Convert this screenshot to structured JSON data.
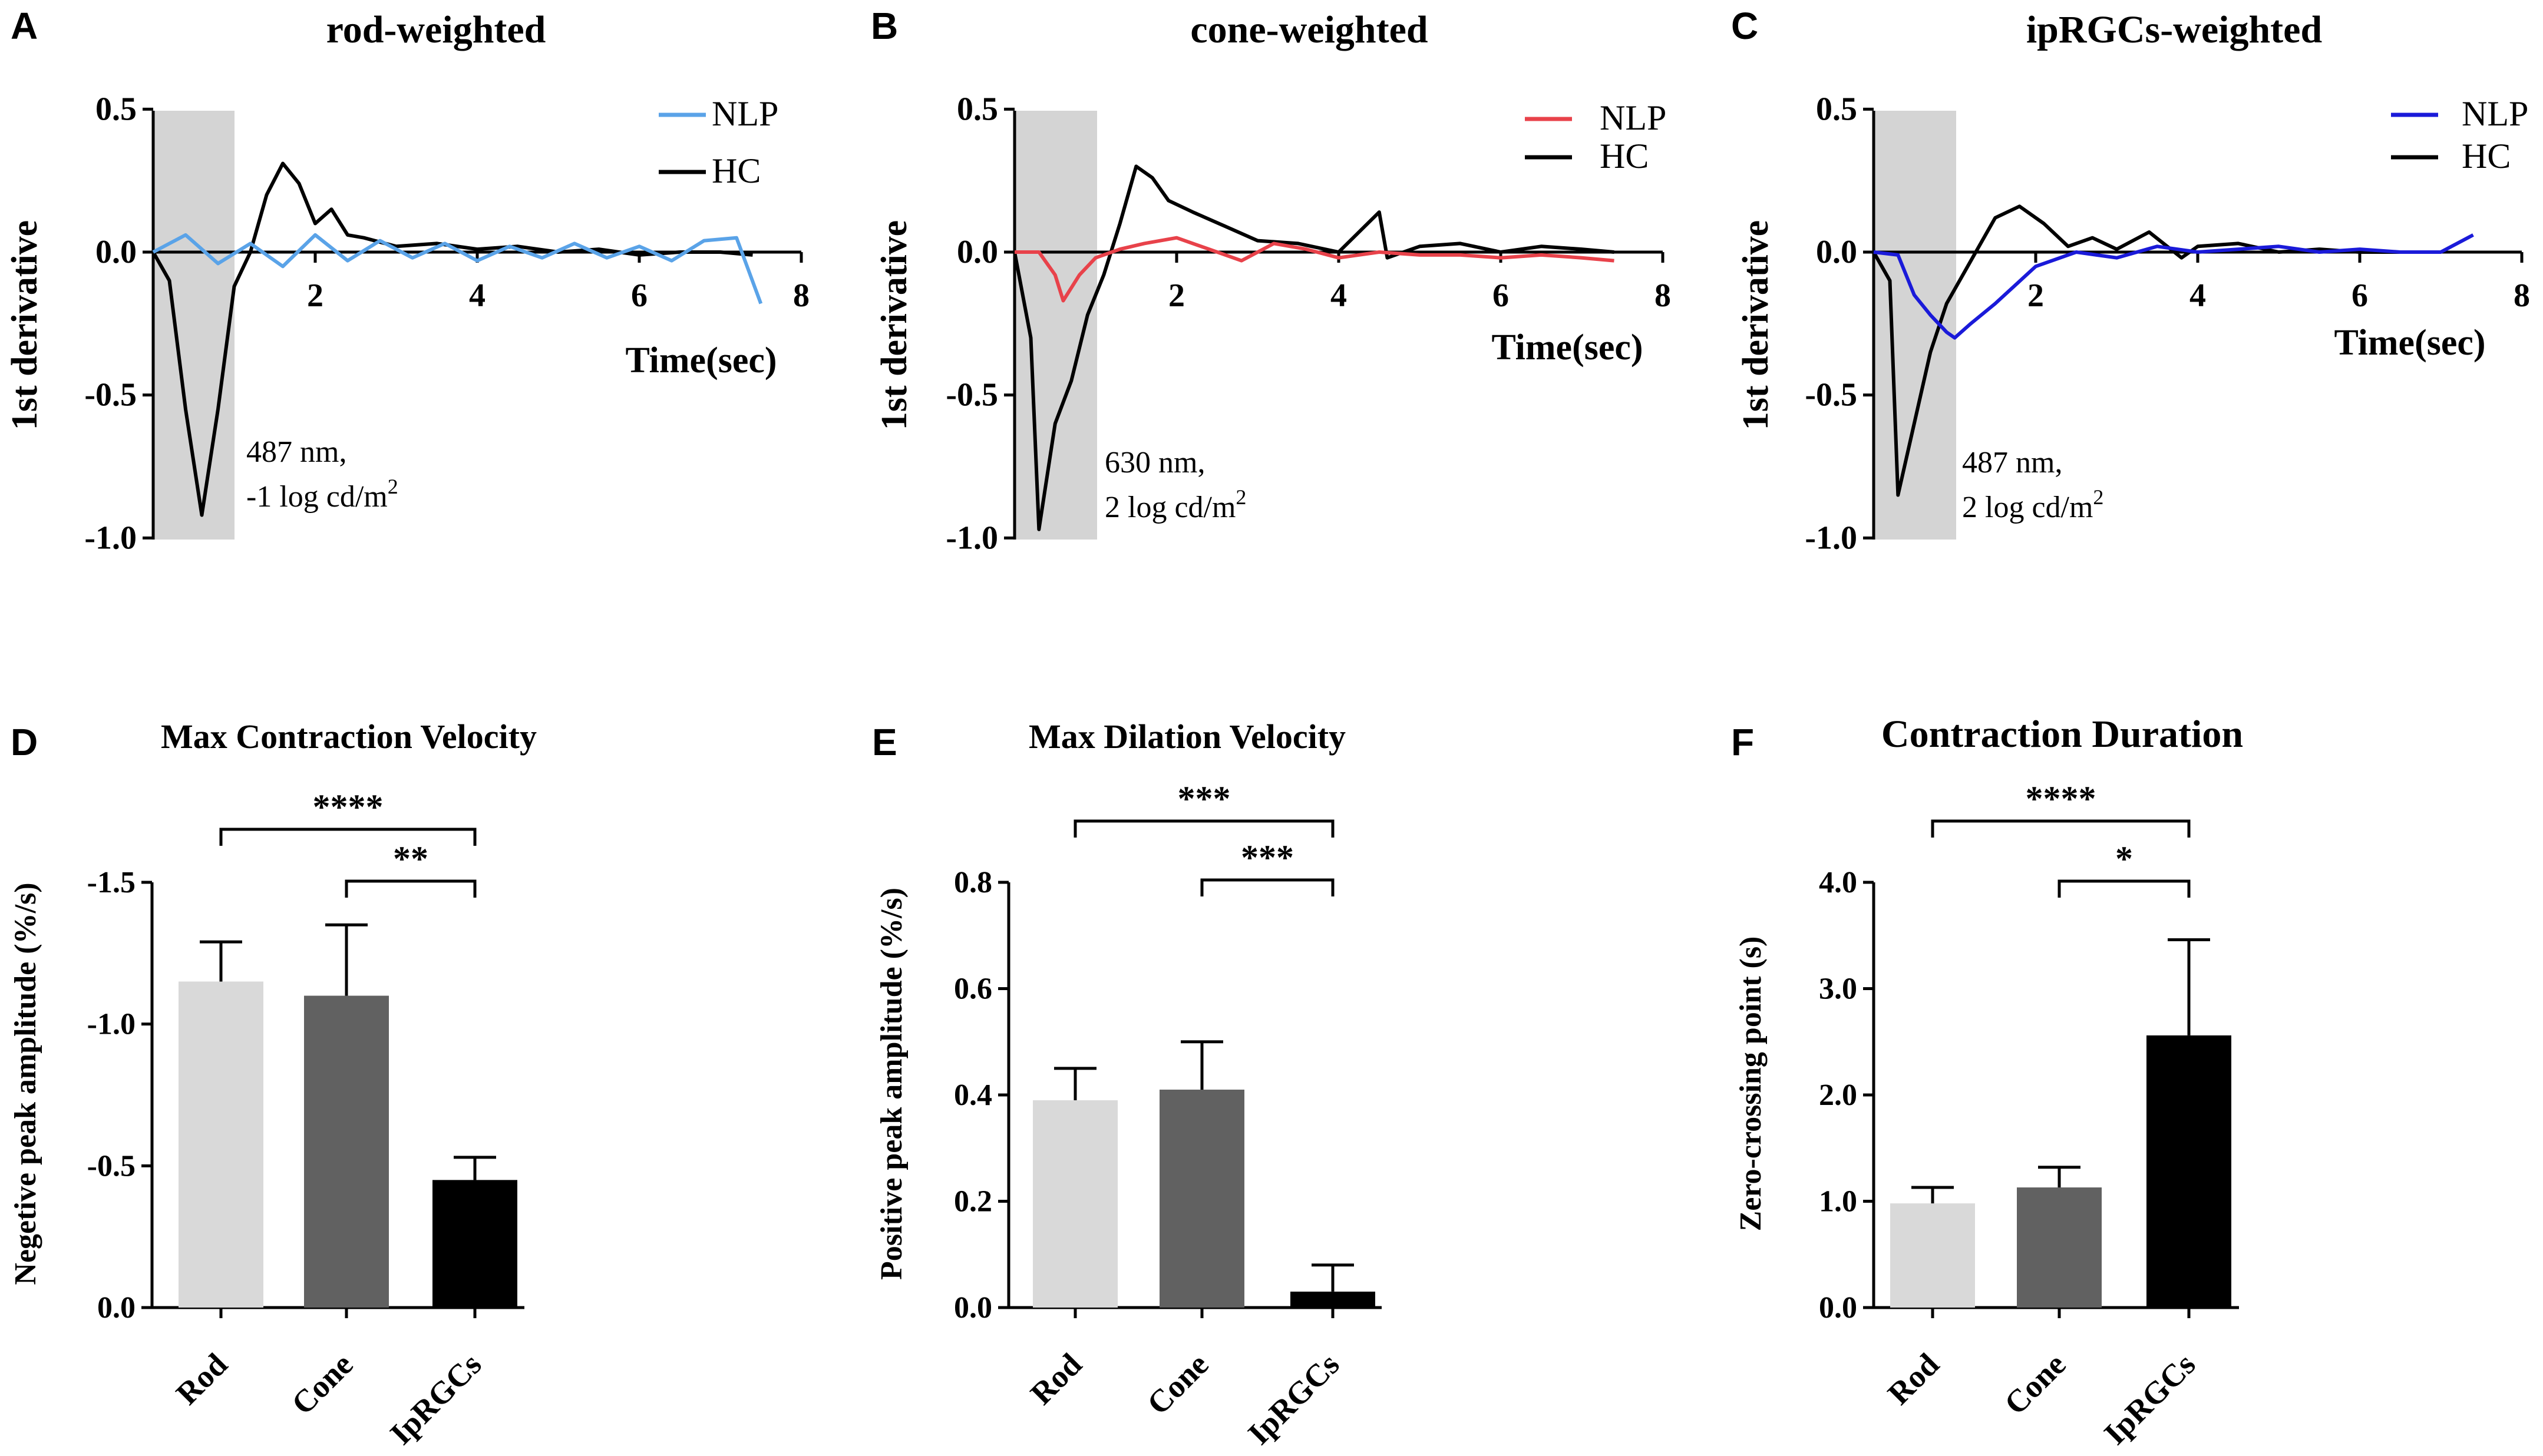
{
  "chart_data": [
    {
      "panel": "A",
      "type": "line",
      "title": "rod-weighted",
      "xlabel": "Time(sec)",
      "ylabel": "1st derivative",
      "xlim": [
        0,
        8
      ],
      "ylim": [
        -1.0,
        0.5
      ],
      "xticks": [
        "2",
        "4",
        "6",
        "8"
      ],
      "yticks": [
        "0.5",
        "0.0",
        "-0.5",
        "-1.0"
      ],
      "stimulus_window": [
        0,
        1
      ],
      "annotation": [
        "487 nm,",
        "-1 log cd/m",
        "2"
      ],
      "series": [
        {
          "name": "NLP",
          "color": "#5aa3e8",
          "x": [
            0,
            0.4,
            0.8,
            1.2,
            1.6,
            2.0,
            2.4,
            2.8,
            3.2,
            3.6,
            4.0,
            4.4,
            4.8,
            5.2,
            5.6,
            6.0,
            6.4,
            6.8,
            7.2,
            7.5
          ],
          "y": [
            0.0,
            0.06,
            -0.04,
            0.03,
            -0.05,
            0.06,
            -0.03,
            0.04,
            -0.02,
            0.03,
            -0.03,
            0.02,
            -0.02,
            0.03,
            -0.02,
            0.02,
            -0.03,
            0.04,
            0.05,
            -0.18
          ]
        },
        {
          "name": "HC",
          "color": "#000000",
          "x": [
            0,
            0.2,
            0.4,
            0.6,
            0.8,
            1.0,
            1.2,
            1.4,
            1.6,
            1.8,
            2.0,
            2.2,
            2.4,
            2.6,
            3.0,
            3.5,
            4.0,
            4.5,
            5.0,
            5.5,
            6.0,
            6.5,
            7.0,
            7.4
          ],
          "y": [
            0.0,
            -0.1,
            -0.55,
            -0.92,
            -0.55,
            -0.12,
            0.0,
            0.2,
            0.31,
            0.24,
            0.1,
            0.15,
            0.06,
            0.05,
            0.02,
            0.03,
            0.01,
            0.02,
            0.0,
            0.01,
            -0.01,
            0.0,
            0.0,
            -0.01
          ]
        }
      ]
    },
    {
      "panel": "B",
      "type": "line",
      "title": "cone-weighted",
      "xlabel": "Time(sec)",
      "ylabel": "1st derivative",
      "xlim": [
        0,
        8
      ],
      "ylim": [
        -1.0,
        0.5
      ],
      "xticks": [
        "2",
        "4",
        "6",
        "8"
      ],
      "yticks": [
        "0.5",
        "0.0",
        "-0.5",
        "-1.0"
      ],
      "stimulus_window": [
        0,
        1
      ],
      "annotation": [
        "630 nm,",
        "2 log cd/m",
        "2"
      ],
      "series": [
        {
          "name": "NLP",
          "color": "#e8424a",
          "x": [
            0,
            0.3,
            0.5,
            0.6,
            0.8,
            1.0,
            1.3,
            1.6,
            2.0,
            2.4,
            2.8,
            3.2,
            3.6,
            4.0,
            4.5,
            5.0,
            5.5,
            6.0,
            6.5,
            7.0,
            7.4
          ],
          "y": [
            0.0,
            0.0,
            -0.08,
            -0.17,
            -0.08,
            -0.02,
            0.01,
            0.03,
            0.05,
            0.01,
            -0.03,
            0.03,
            0.01,
            -0.02,
            0.0,
            -0.01,
            -0.01,
            -0.02,
            -0.01,
            -0.02,
            -0.03
          ]
        },
        {
          "name": "HC",
          "color": "#000000",
          "x": [
            0,
            0.2,
            0.3,
            0.5,
            0.7,
            0.9,
            1.1,
            1.3,
            1.5,
            1.7,
            1.9,
            2.2,
            2.6,
            3.0,
            3.5,
            4.0,
            4.5,
            4.6,
            5.0,
            5.5,
            6.0,
            6.5,
            7.0,
            7.4
          ],
          "y": [
            0.0,
            -0.3,
            -0.97,
            -0.6,
            -0.45,
            -0.22,
            -0.08,
            0.1,
            0.3,
            0.26,
            0.18,
            0.14,
            0.09,
            0.04,
            0.03,
            0.0,
            0.14,
            -0.02,
            0.02,
            0.03,
            0.0,
            0.02,
            0.01,
            0.0
          ]
        }
      ]
    },
    {
      "panel": "C",
      "type": "line",
      "title": "ipRGCs-weighted",
      "xlabel": "Time(sec)",
      "ylabel": "1st derivative",
      "xlim": [
        0,
        8
      ],
      "ylim": [
        -1.0,
        0.5
      ],
      "xticks": [
        "2",
        "4",
        "6",
        "8"
      ],
      "yticks": [
        "0.5",
        "0.0",
        "-0.5",
        "-1.0"
      ],
      "stimulus_window": [
        0,
        1
      ],
      "annotation": [
        "487 nm,",
        "2 log cd/m",
        "2"
      ],
      "series": [
        {
          "name": "NLP",
          "color": "#1a1ad9",
          "x": [
            0,
            0.3,
            0.5,
            0.7,
            0.9,
            1.0,
            1.2,
            1.5,
            2.0,
            2.5,
            3.0,
            3.5,
            4.0,
            4.5,
            5.0,
            5.5,
            6.0,
            6.5,
            7.0,
            7.4
          ],
          "y": [
            0.0,
            -0.01,
            -0.15,
            -0.22,
            -0.28,
            -0.3,
            -0.25,
            -0.18,
            -0.05,
            0.0,
            -0.02,
            0.02,
            0.0,
            0.01,
            0.02,
            0.0,
            0.01,
            0.0,
            0.0,
            0.06
          ]
        },
        {
          "name": "HC",
          "color": "#000000",
          "x": [
            0,
            0.2,
            0.3,
            0.5,
            0.7,
            0.9,
            1.2,
            1.5,
            1.8,
            2.1,
            2.4,
            2.7,
            3.0,
            3.4,
            3.8,
            4.0,
            4.5,
            5.0,
            5.5,
            6.0,
            6.5,
            7.0
          ],
          "y": [
            0.0,
            -0.1,
            -0.85,
            -0.6,
            -0.35,
            -0.18,
            -0.03,
            0.12,
            0.16,
            0.1,
            0.02,
            0.05,
            0.01,
            0.07,
            -0.02,
            0.02,
            0.03,
            0.0,
            0.01,
            0.0,
            0.0,
            0.0
          ]
        }
      ]
    },
    {
      "panel": "D",
      "type": "bar",
      "title": "Max Contraction Velocity",
      "xlabel": "",
      "ylabel": "Negetive peak amplitude (%/s)",
      "categories": [
        "Rod",
        "Cone",
        "IpRGCs"
      ],
      "values": [
        -1.15,
        -1.1,
        -0.45
      ],
      "errors": [
        0.14,
        0.25,
        0.08
      ],
      "colors": [
        "#d9d9d9",
        "#616161",
        "#000000"
      ],
      "ylim": [
        0,
        -1.5
      ],
      "yticks": [
        "0.0",
        "-0.5",
        "-1.0",
        "-1.5"
      ],
      "significance": [
        {
          "from": 0,
          "to": 2,
          "label": "****"
        },
        {
          "from": 1,
          "to": 2,
          "label": "**"
        }
      ]
    },
    {
      "panel": "E",
      "type": "bar",
      "title": "Max Dilation Velocity",
      "xlabel": "",
      "ylabel": "Positive peak amplitude (%/s)",
      "categories": [
        "Rod",
        "Cone",
        "IpRGCs"
      ],
      "values": [
        0.39,
        0.41,
        0.03
      ],
      "errors": [
        0.06,
        0.09,
        0.05
      ],
      "colors": [
        "#d9d9d9",
        "#616161",
        "#000000"
      ],
      "ylim": [
        0,
        0.8
      ],
      "yticks": [
        "0.0",
        "0.2",
        "0.4",
        "0.6",
        "0.8"
      ],
      "significance": [
        {
          "from": 0,
          "to": 2,
          "label": "***"
        },
        {
          "from": 1,
          "to": 2,
          "label": "***"
        }
      ]
    },
    {
      "panel": "F",
      "type": "bar",
      "title": "Contraction Duration",
      "xlabel": "",
      "ylabel": "Zero-crossing point (s)",
      "categories": [
        "Rod",
        "Cone",
        "IpRGCs"
      ],
      "values": [
        0.98,
        1.13,
        2.56
      ],
      "errors": [
        0.15,
        0.19,
        0.9
      ],
      "colors": [
        "#d9d9d9",
        "#616161",
        "#000000"
      ],
      "ylim": [
        0,
        4.0
      ],
      "yticks": [
        "0.0",
        "1.0",
        "2.0",
        "3.0",
        "4.0"
      ],
      "significance": [
        {
          "from": 0,
          "to": 2,
          "label": "****"
        },
        {
          "from": 1,
          "to": 2,
          "label": "*"
        }
      ]
    }
  ]
}
